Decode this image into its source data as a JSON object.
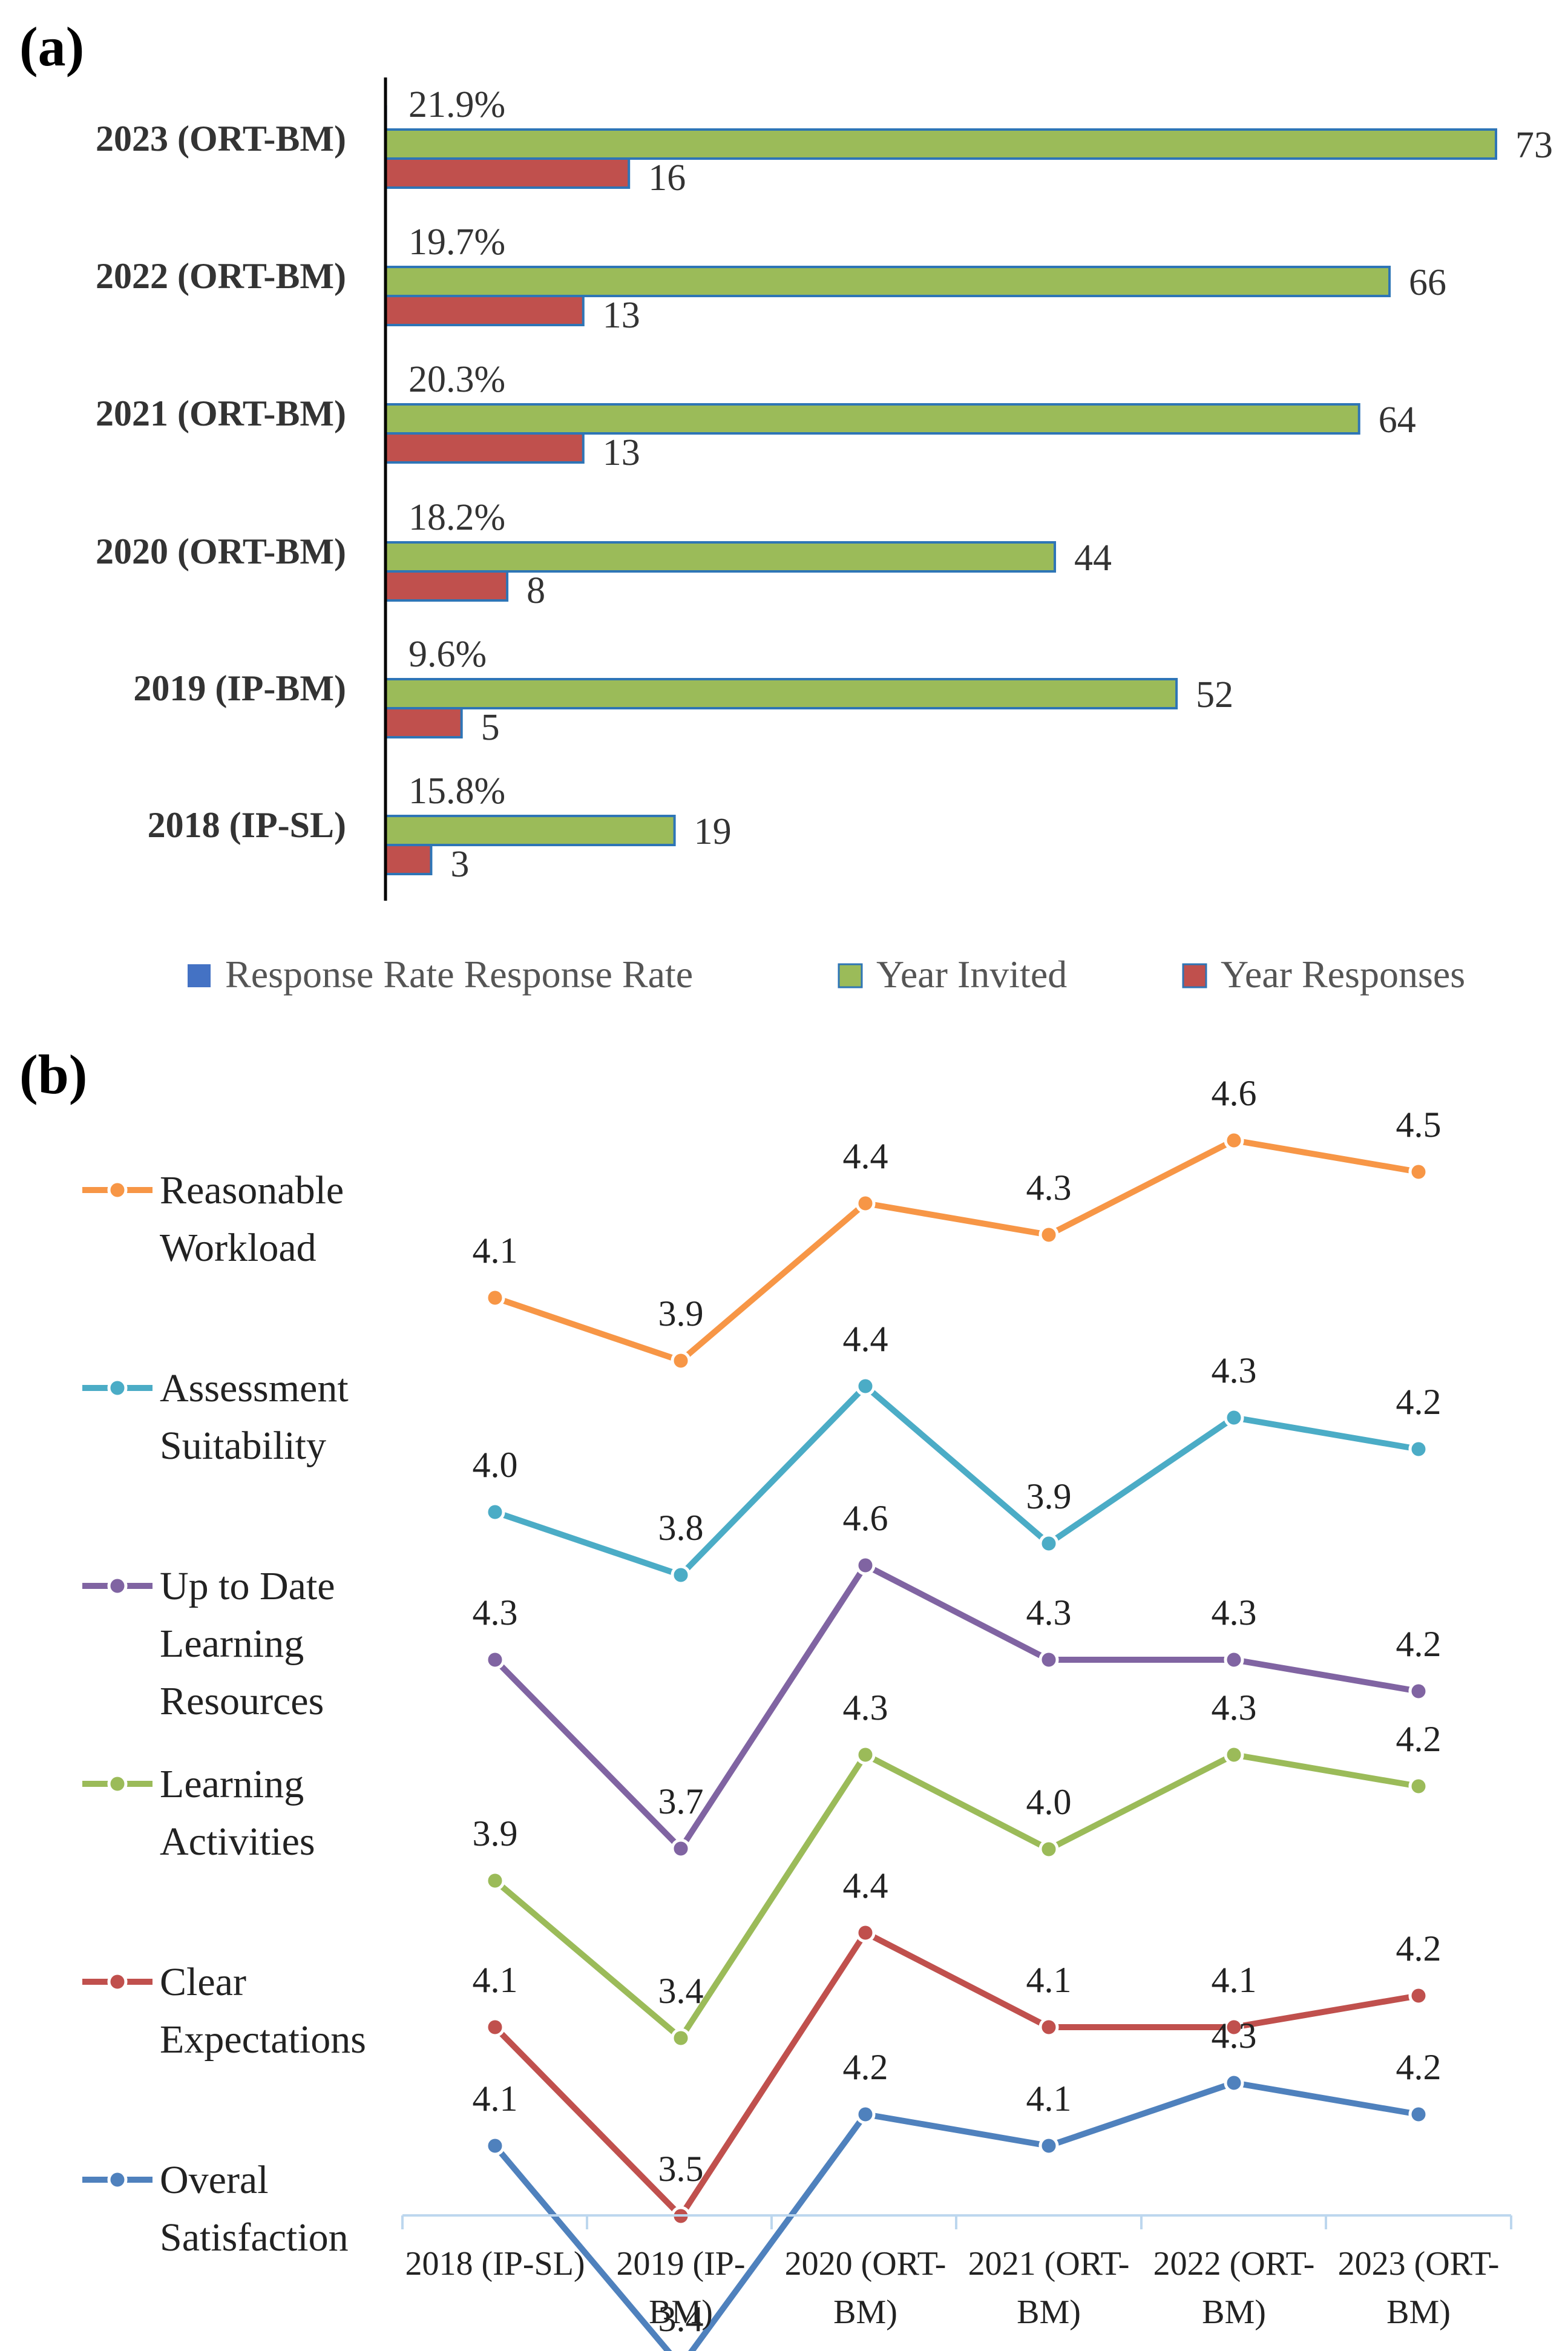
{
  "panel_labels": {
    "a": "(a)",
    "b": "(b)"
  },
  "colors": {
    "invited": "#9bbb59",
    "invited_edge": "#2e75b6",
    "responses": "#c0504d",
    "rate": "#4472c4",
    "axis": "#000000",
    "text": "#333333"
  },
  "chart_data": [
    {
      "type": "bar",
      "orientation": "horizontal",
      "categories": [
        "2023 (ORT-BM)",
        "2022 (ORT-BM)",
        "2021 (ORT-BM)",
        "2020 (ORT-BM)",
        "2019 (IP-BM)",
        "2018 (IP-SL)"
      ],
      "series": [
        {
          "name": "Response Rate Response Rate",
          "values": [
            21.9,
            19.7,
            20.3,
            18.2,
            9.6,
            15.8
          ],
          "labels": [
            "21.9%",
            "19.7%",
            "20.3%",
            "18.2%",
            "9.6%",
            "15.8%"
          ]
        },
        {
          "name": "Year Invited",
          "values": [
            73,
            66,
            64,
            44,
            52,
            19
          ],
          "labels": [
            "73",
            "66",
            "64",
            "44",
            "52",
            "19"
          ]
        },
        {
          "name": "Year Responses",
          "values": [
            16,
            13,
            13,
            8,
            5,
            3
          ],
          "labels": [
            "16",
            "13",
            "13",
            "8",
            "5",
            "3"
          ]
        }
      ],
      "xlim": [
        0,
        73
      ],
      "legend": [
        "Response Rate Response Rate",
        "Year Invited",
        "Year Responses"
      ],
      "legend_position": "bottom"
    },
    {
      "type": "line",
      "categories": [
        [
          "2018 (IP-SL)"
        ],
        [
          "2019 (IP-",
          "BM)"
        ],
        [
          "2020 (ORT-",
          "BM)"
        ],
        [
          "2021 (ORT-",
          "BM)"
        ],
        [
          "2022 (ORT-",
          "BM)"
        ],
        [
          "2023 (ORT-",
          "BM)"
        ]
      ],
      "series": [
        {
          "name": [
            "Reasonable",
            "Workload"
          ],
          "color": "#f79646",
          "values": [
            4.1,
            3.9,
            4.4,
            4.3,
            4.6,
            4.5
          ],
          "labels": [
            "4.1",
            "3.9",
            "4.4",
            "4.3",
            "4.6",
            "4.5"
          ]
        },
        {
          "name": [
            "Assessment",
            "Suitability"
          ],
          "color": "#4bacc6",
          "values": [
            4.0,
            3.8,
            4.4,
            3.9,
            4.3,
            4.2
          ],
          "labels": [
            "4.0",
            "3.8",
            "4.4",
            "3.9",
            "4.3",
            "4.2"
          ]
        },
        {
          "name": [
            "Up to Date",
            "Learning",
            "Resources"
          ],
          "color": "#8064a2",
          "values": [
            4.3,
            3.7,
            4.6,
            4.3,
            4.3,
            4.2
          ],
          "labels": [
            "4.3",
            "3.7",
            "4.6",
            "4.3",
            "4.3",
            "4.2"
          ]
        },
        {
          "name": [
            "Learning",
            "Activities"
          ],
          "color": "#9bbb59",
          "values": [
            3.9,
            3.4,
            4.3,
            4.0,
            4.3,
            4.2
          ],
          "labels": [
            "3.9",
            "3.4",
            "4.3",
            "4.0",
            "4.3",
            "4.2"
          ]
        },
        {
          "name": [
            "Clear",
            "Expectations"
          ],
          "color": "#c0504d",
          "values": [
            4.1,
            3.5,
            4.4,
            4.1,
            4.1,
            4.2
          ],
          "labels": [
            "4.1",
            "3.5",
            "4.4",
            "4.1",
            "4.1",
            "4.2"
          ]
        },
        {
          "name": [
            "Overal",
            "Satisfaction"
          ],
          "color": "#4f81bd",
          "values": [
            4.1,
            3.4,
            4.2,
            4.1,
            4.3,
            4.2
          ],
          "labels": [
            "4.1",
            "3.4",
            "4.2",
            "4.1",
            "4.3",
            "4.2"
          ]
        }
      ],
      "legend_position": "left"
    }
  ]
}
